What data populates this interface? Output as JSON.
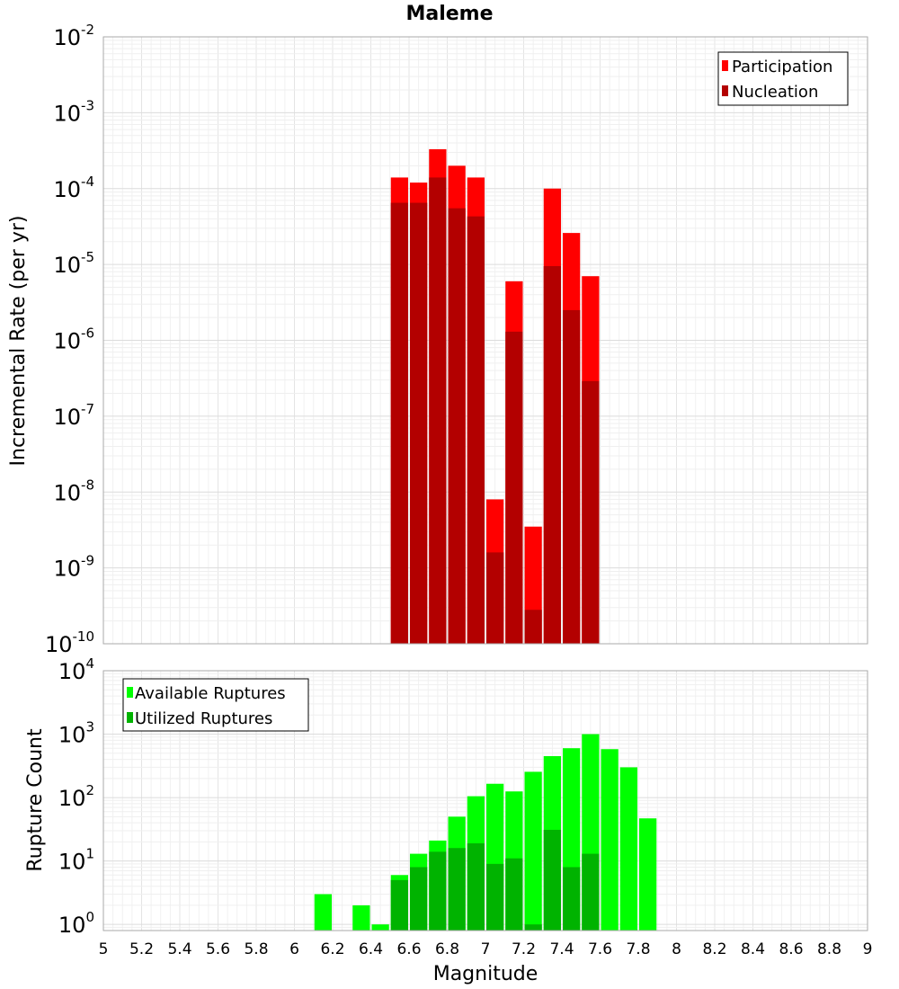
{
  "chart_data": [
    {
      "type": "bar",
      "title": "Maleme",
      "xlabel": "",
      "ylabel": "Incremental Rate (per yr)",
      "yscale": "log",
      "ylim": [
        1e-10,
        0.01
      ],
      "xlim": [
        5,
        9
      ],
      "grid": true,
      "legend_position": "top-right",
      "x": [
        6.55,
        6.65,
        6.75,
        6.85,
        6.95,
        7.05,
        7.15,
        7.25,
        7.35,
        7.45,
        7.55
      ],
      "series": [
        {
          "name": "Participation",
          "color": "#ff0000",
          "values": [
            0.00014,
            0.00012,
            0.00033,
            0.0002,
            0.00014,
            8e-09,
            6e-06,
            3.5e-09,
            0.0001,
            2.6e-05,
            7e-06
          ]
        },
        {
          "name": "Nucleation",
          "color": "#b30000",
          "values": [
            6.5e-05,
            6.5e-05,
            0.00014,
            5.5e-05,
            4.3e-05,
            1.6e-09,
            1.3e-06,
            2.8e-10,
            9.5e-06,
            2.5e-06,
            2.9e-07
          ]
        }
      ],
      "yticks": [
        {
          "base": "10",
          "exp": "-10"
        },
        {
          "base": "10",
          "exp": "-9"
        },
        {
          "base": "10",
          "exp": "-8"
        },
        {
          "base": "10",
          "exp": "-7"
        },
        {
          "base": "10",
          "exp": "-6"
        },
        {
          "base": "10",
          "exp": "-5"
        },
        {
          "base": "10",
          "exp": "-4"
        },
        {
          "base": "10",
          "exp": "-3"
        },
        {
          "base": "10",
          "exp": "-2"
        }
      ]
    },
    {
      "type": "bar",
      "title": "",
      "xlabel": "Magnitude",
      "ylabel": "Rupture Count",
      "yscale": "log",
      "ylim": [
        0.8,
        10000
      ],
      "xlim": [
        5,
        9
      ],
      "grid": true,
      "legend_position": "top-left",
      "x": [
        6.15,
        6.35,
        6.45,
        6.55,
        6.65,
        6.75,
        6.85,
        6.95,
        7.05,
        7.15,
        7.25,
        7.35,
        7.45,
        7.55,
        7.65,
        7.75,
        7.85
      ],
      "series": [
        {
          "name": "Available Ruptures",
          "color": "#00ff00",
          "values": [
            3,
            2,
            1,
            6,
            13,
            21,
            50,
            105,
            165,
            125,
            255,
            450,
            600,
            1000,
            580,
            300,
            47
          ]
        },
        {
          "name": "Utilized Ruptures",
          "color": "#00b300",
          "values": [
            0,
            0,
            0,
            5,
            8,
            14,
            16,
            19,
            9,
            11,
            1,
            31,
            8,
            13,
            0,
            0,
            0
          ]
        }
      ],
      "yticks": [
        {
          "base": "10",
          "exp": "0"
        },
        {
          "base": "10",
          "exp": "1"
        },
        {
          "base": "10",
          "exp": "2"
        },
        {
          "base": "10",
          "exp": "3"
        },
        {
          "base": "10",
          "exp": "4"
        }
      ],
      "xticks": [
        "5",
        "5.2",
        "5.4",
        "5.6",
        "5.8",
        "6",
        "6.2",
        "6.4",
        "6.6",
        "6.8",
        "7",
        "7.2",
        "7.4",
        "7.6",
        "7.8",
        "8",
        "8.2",
        "8.4",
        "8.6",
        "8.8",
        "9"
      ]
    }
  ]
}
